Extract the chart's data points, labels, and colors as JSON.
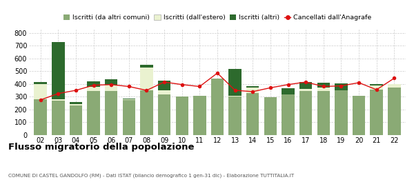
{
  "years": [
    "02",
    "03",
    "04",
    "05",
    "06",
    "07",
    "08",
    "09",
    "10",
    "11",
    "12",
    "13",
    "14",
    "15",
    "16",
    "17",
    "18",
    "19",
    "20",
    "21",
    "22"
  ],
  "iscritti_comuni": [
    280,
    270,
    230,
    345,
    345,
    275,
    350,
    320,
    300,
    305,
    440,
    300,
    330,
    295,
    320,
    345,
    345,
    350,
    305,
    355,
    370
  ],
  "iscritti_estero": [
    120,
    10,
    15,
    30,
    50,
    5,
    180,
    30,
    0,
    0,
    0,
    5,
    40,
    0,
    0,
    18,
    25,
    0,
    0,
    32,
    30
  ],
  "iscritti_altri": [
    15,
    445,
    15,
    45,
    42,
    5,
    18,
    75,
    0,
    0,
    0,
    210,
    12,
    0,
    48,
    50,
    42,
    52,
    0,
    12,
    0
  ],
  "cancellati": [
    275,
    325,
    350,
    390,
    395,
    380,
    350,
    415,
    395,
    380,
    485,
    350,
    340,
    370,
    395,
    415,
    380,
    385,
    410,
    355,
    445
  ],
  "color_comuni": "#8aaa75",
  "color_estero": "#eaf2d0",
  "color_altri": "#2d6a2d",
  "color_cancellati": "#dd1111",
  "title": "Flusso migratorio della popolazione",
  "subtitle": "COMUNE DI CASTEL GANDOLFO (RM) - Dati ISTAT (bilancio demografico 1 gen-31 dic) - Elaborazione TUTTITALIA.IT",
  "legend_labels": [
    "Iscritti (da altri comuni)",
    "Iscritti (dall'estero)",
    "Iscritti (altri)",
    "Cancellati dall'Anagrafe"
  ],
  "ylim": [
    0,
    830
  ],
  "yticks": [
    0,
    100,
    200,
    300,
    400,
    500,
    600,
    700,
    800
  ]
}
